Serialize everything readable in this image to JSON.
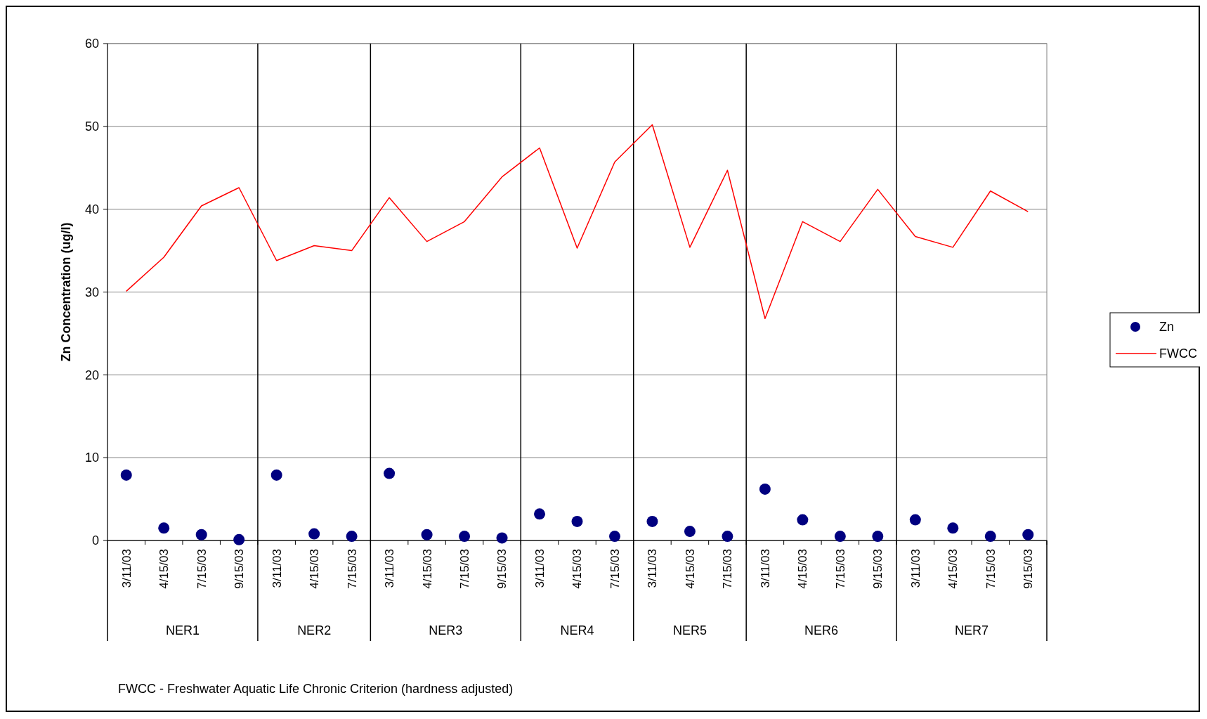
{
  "chart_data": {
    "type": "scatter",
    "ylabel": "Zn Concentration (ug/l)",
    "categories": [
      "3/11/03",
      "4/15/03",
      "7/15/03",
      "9/15/03",
      "3/11/03",
      "4/15/03",
      "7/15/03",
      "3/11/03",
      "4/15/03",
      "7/15/03",
      "9/15/03",
      "3/11/03",
      "4/15/03",
      "7/15/03",
      "3/11/03",
      "4/15/03",
      "7/15/03",
      "3/11/03",
      "4/15/03",
      "7/15/03",
      "9/15/03",
      "3/11/03",
      "4/15/03",
      "7/15/03",
      "9/15/03"
    ],
    "series": [
      {
        "name": "Zn",
        "color": "#000080",
        "marker": "circle",
        "values": [
          7.9,
          1.5,
          0.7,
          0.1,
          7.9,
          0.8,
          0.5,
          8.1,
          0.7,
          0.5,
          0.3,
          3.2,
          2.3,
          0.5,
          2.3,
          1.1,
          0.5,
          6.2,
          2.5,
          0.5,
          0.5,
          2.5,
          1.5,
          0.5,
          0.7
        ]
      },
      {
        "name": "FWCC",
        "type": "line",
        "color": "#ff0000",
        "values": [
          30.1,
          34.2,
          40.4,
          42.6,
          33.8,
          35.6,
          35.0,
          41.4,
          36.1,
          38.5,
          43.9,
          47.4,
          35.3,
          45.7,
          50.2,
          35.4,
          44.7,
          26.8,
          38.5,
          36.1,
          42.4,
          36.7,
          35.4,
          42.2,
          39.7
        ]
      }
    ],
    "ylim": [
      0,
      60
    ],
    "yticks": [
      0,
      10,
      20,
      30,
      40,
      50,
      60
    ],
    "grid": "y",
    "legend": "right",
    "annotations": [
      "NER1",
      "NER2",
      "NER3",
      "NER4",
      "NER5",
      "NER6",
      "NER7",
      "FWCC - Freshwater Aquatic Life Chronic Criterion (hardness adjusted)"
    ]
  }
}
